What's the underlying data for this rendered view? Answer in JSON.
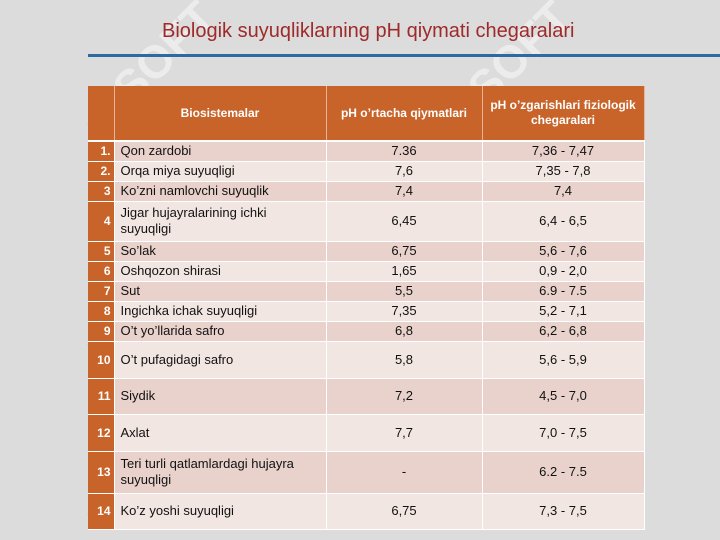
{
  "title": "Biologik suyuqliklarning pH qiymati chegaralari",
  "watermark_text": "SOFT",
  "accent_color": "#c8632a",
  "rule_color": "#2e6aa1",
  "table": {
    "headers": [
      "Biosistemalar",
      "pH o’rtacha qiymatlari",
      "pH o’zgarishlari fiziologik chegaralari"
    ],
    "rows": [
      {
        "n": "1.",
        "name": "Qon zardobi",
        "avg": "7.36",
        "range": "7,36 - 7,47"
      },
      {
        "n": "2.",
        "name": "Orqa miya suyuqligi",
        "avg": "7,6",
        "range": "7,35 - 7,8"
      },
      {
        "n": "3",
        "name": "Ko’zni namlovchi suyuqlik",
        "avg": "7,4",
        "range": "7,4"
      },
      {
        "n": "4",
        "name": "Jigar hujayralarining ichki suyuqligi",
        "avg": "6,45",
        "range": "6,4 - 6,5"
      },
      {
        "n": "5",
        "name": "So’lak",
        "avg": "6,75",
        "range": "5,6 - 7,6"
      },
      {
        "n": "6",
        "name": "Oshqozon shirasi",
        "avg": "1,65",
        "range": "0,9 - 2,0"
      },
      {
        "n": "7",
        "name": "Sut",
        "avg": "5,5",
        "range": "6.9 - 7.5"
      },
      {
        "n": "8",
        "name": "Ingichka ichak suyuqligi",
        "avg": "7,35",
        "range": "5,2 - 7,1"
      },
      {
        "n": "9",
        "name": "O’t yo’llarida safro",
        "avg": "6,8",
        "range": "6,2 - 6,8"
      },
      {
        "n": "10",
        "name": "O’t pufagidagi safro",
        "avg": "5,8",
        "range": "5,6 - 5,9"
      },
      {
        "n": "11",
        "name": "Siydik",
        "avg": "7,2",
        "range": "4,5 - 7,0"
      },
      {
        "n": "12",
        "name": "Axlat",
        "avg": "7,7",
        "range": "7,0 - 7,5"
      },
      {
        "n": "13",
        "name": "Teri turli qatlamlardagi hujayra suyuqligi",
        "avg": "-",
        "range": "6.2 - 7.5"
      },
      {
        "n": "14",
        "name": "Ko’z yoshi suyuqligi",
        "avg": "6,75",
        "range": "7,3 - 7,5"
      }
    ]
  }
}
